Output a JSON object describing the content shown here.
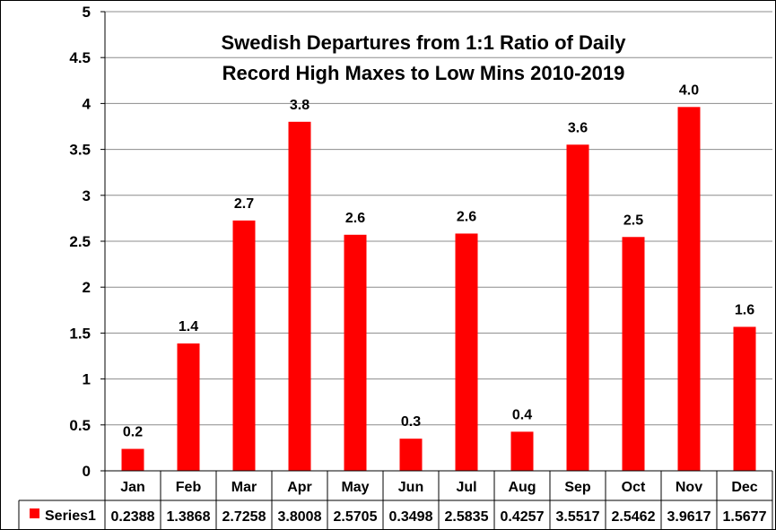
{
  "colors": {
    "bar": "#ff0000",
    "grid": "#8c8c8c",
    "axis": "#000000",
    "border": "#000000"
  },
  "chart_data": {
    "type": "bar",
    "title_lines": [
      "Swedish Departures from 1:1 Ratio of Daily",
      "Record High Maxes to Low Mins 2010-2019"
    ],
    "categories": [
      "Jan",
      "Feb",
      "Mar",
      "Apr",
      "May",
      "Jun",
      "Jul",
      "Aug",
      "Sep",
      "Oct",
      "Nov",
      "Dec"
    ],
    "series": [
      {
        "name": "Series1",
        "values": [
          0.2388,
          1.3868,
          2.7258,
          3.8008,
          2.5705,
          0.3498,
          2.5835,
          0.4257,
          3.5517,
          2.5462,
          3.9617,
          1.5677
        ]
      }
    ],
    "data_labels": [
      "0.2",
      "1.4",
      "2.7",
      "3.8",
      "2.6",
      "0.3",
      "2.6",
      "0.4",
      "3.6",
      "2.5",
      "4.0",
      "1.6"
    ],
    "table_values": [
      "0.2388",
      "1.3868",
      "2.7258",
      "3.8008",
      "2.5705",
      "0.3498",
      "2.5835",
      "0.4257",
      "3.5517",
      "2.5462",
      "3.9617",
      "1.5677"
    ],
    "yticks": [
      "0",
      "0.5",
      "1",
      "1.5",
      "2",
      "2.5",
      "3",
      "3.5",
      "4",
      "4.5",
      "5"
    ],
    "ylim": [
      0,
      5
    ],
    "grid": true,
    "legend": "data-table"
  }
}
